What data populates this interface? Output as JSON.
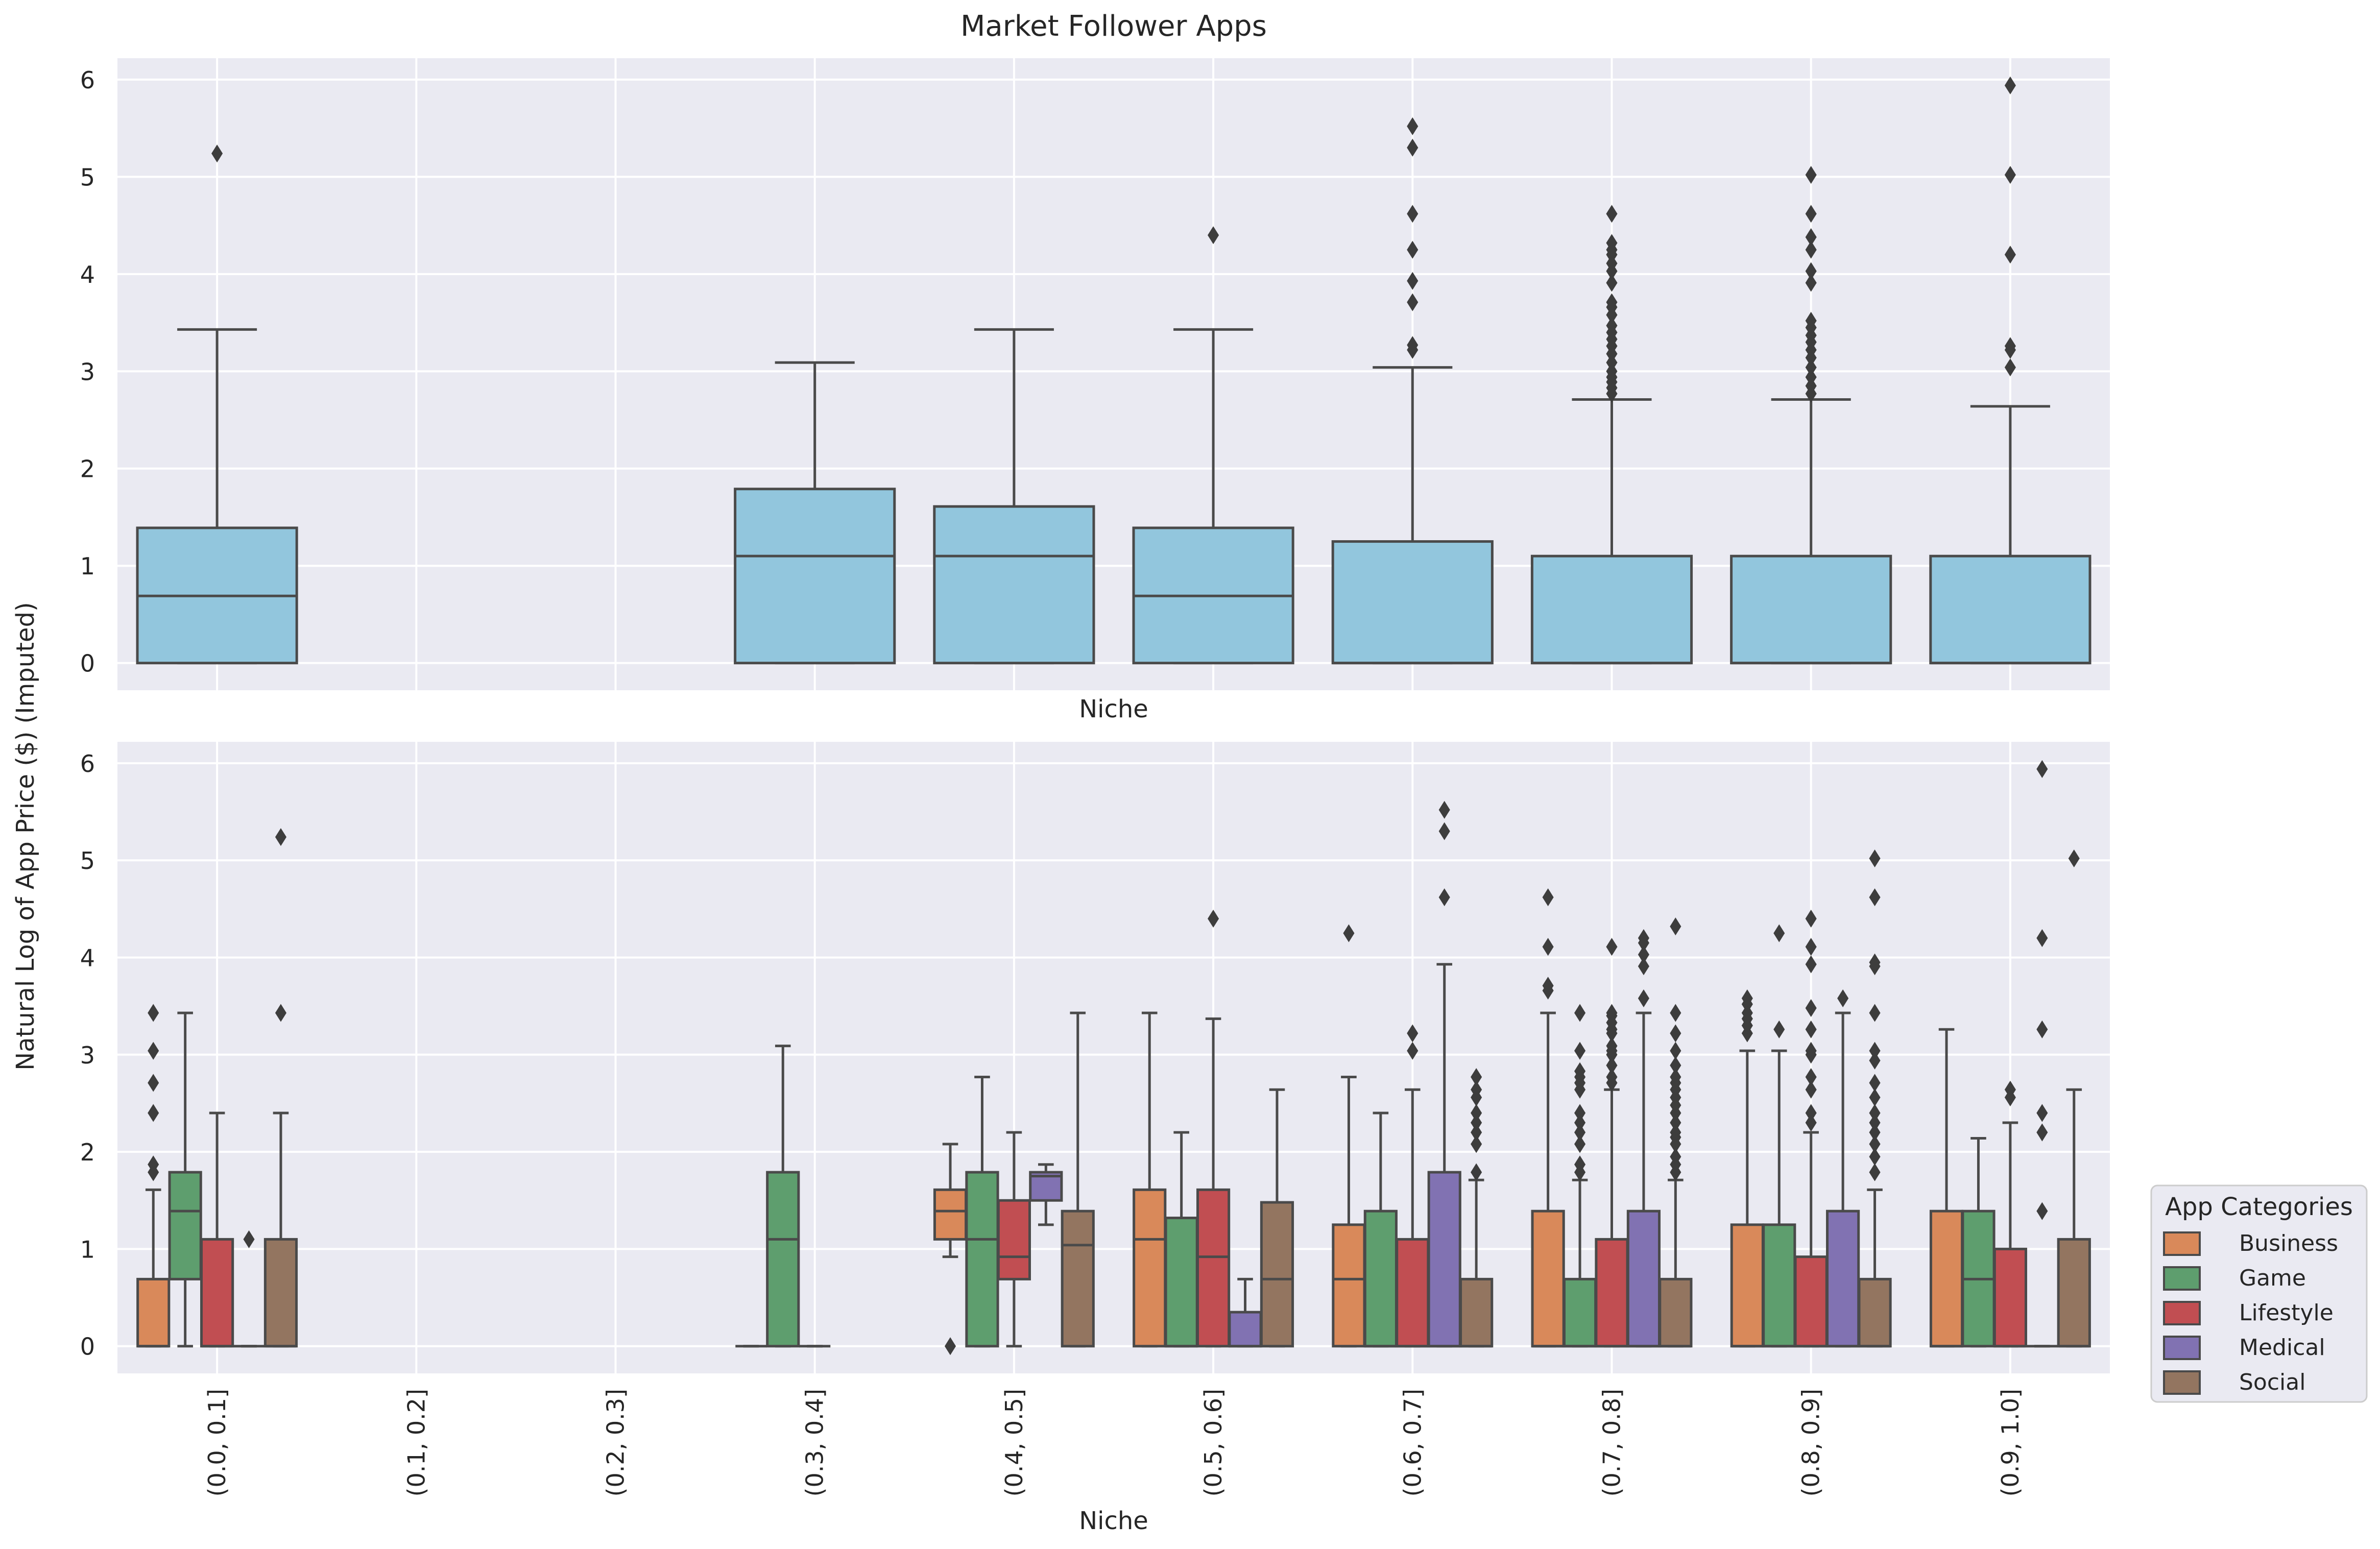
{
  "chart_data": {
    "type": "box",
    "title": "Market Follower Apps",
    "ylabel": "Natural Log of App Price ($) (Imputed)",
    "categories": [
      "(0.0, 0.1]",
      "(0.1, 0.2]",
      "(0.2, 0.3]",
      "(0.3, 0.4]",
      "(0.4, 0.5]",
      "(0.5, 0.6]",
      "(0.6, 0.7]",
      "(0.7, 0.8]",
      "(0.8, 0.9]",
      "(0.9, 1.0]"
    ],
    "yticks": [
      0,
      1,
      2,
      3,
      4,
      5,
      6
    ],
    "ylim": [
      -0.28,
      6.22
    ],
    "colors": {
      "overall": "#92C6DD",
      "Business": "#D9895A",
      "Game": "#5E9E6E",
      "Lifestyle": "#C14E52",
      "Medical": "#8172B2",
      "Social": "#937560",
      "line": "#4A4A4A",
      "background": "#EAEAF2",
      "grid": "#FFFFFF"
    },
    "top": {
      "xlabel": "Niche",
      "boxes": [
        {
          "cat": 0,
          "lo": 0,
          "q1": 0,
          "med": 0.69,
          "q3": 1.39,
          "hi": 3.43,
          "outliers": [
            5.24
          ]
        },
        {
          "cat": 3,
          "lo": 0,
          "q1": 0,
          "med": 1.1,
          "q3": 1.79,
          "hi": 3.09,
          "outliers": []
        },
        {
          "cat": 4,
          "lo": 0,
          "q1": 0,
          "med": 1.1,
          "q3": 1.61,
          "hi": 3.43,
          "outliers": []
        },
        {
          "cat": 5,
          "lo": 0,
          "q1": 0,
          "med": 0.69,
          "q3": 1.39,
          "hi": 3.43,
          "outliers": [
            4.4
          ]
        },
        {
          "cat": 6,
          "lo": 0,
          "q1": 0,
          "med": 0,
          "q3": 1.25,
          "hi": 3.04,
          "outliers": [
            3.22,
            3.27,
            3.71,
            3.93,
            4.25,
            4.62,
            5.3,
            5.52
          ]
        },
        {
          "cat": 7,
          "lo": 0,
          "q1": 0,
          "med": 0,
          "q3": 1.1,
          "hi": 2.71,
          "outliers": [
            2.77,
            2.83,
            2.89,
            2.94,
            3.0,
            3.09,
            3.18,
            3.26,
            3.33,
            3.4,
            3.47,
            3.58,
            3.66,
            3.71,
            3.91,
            4.03,
            4.11,
            4.2,
            4.25,
            4.32,
            4.62
          ]
        },
        {
          "cat": 8,
          "lo": 0,
          "q1": 0,
          "med": 0,
          "q3": 1.1,
          "hi": 2.71,
          "outliers": [
            2.77,
            2.85,
            2.94,
            3.04,
            3.14,
            3.22,
            3.3,
            3.37,
            3.45,
            3.52,
            3.91,
            4.03,
            4.25,
            4.38,
            4.62,
            5.02
          ]
        },
        {
          "cat": 9,
          "lo": 0,
          "q1": 0,
          "med": 0,
          "q3": 1.1,
          "hi": 2.64,
          "outliers": [
            3.04,
            3.22,
            3.26,
            4.2,
            5.02,
            5.94
          ]
        }
      ]
    },
    "bottom": {
      "xlabel": "Niche",
      "legend_title": "App Categories",
      "hue_order": [
        "Business",
        "Game",
        "Lifestyle",
        "Medical",
        "Social"
      ],
      "boxes": [
        {
          "cat": 0,
          "hue": "Business",
          "lo": 0,
          "q1": 0,
          "med": 0,
          "q3": 0.69,
          "hi": 1.61,
          "outliers": [
            1.79,
            1.87,
            2.4,
            2.71,
            3.04,
            3.43
          ]
        },
        {
          "cat": 0,
          "hue": "Game",
          "lo": 0,
          "q1": 0.69,
          "med": 1.39,
          "q3": 1.79,
          "hi": 3.43,
          "outliers": []
        },
        {
          "cat": 0,
          "hue": "Lifestyle",
          "lo": 0,
          "q1": 0,
          "med": 0,
          "q3": 1.1,
          "hi": 2.4,
          "outliers": []
        },
        {
          "cat": 0,
          "hue": "Medical",
          "lo": 0,
          "q1": 0,
          "med": 0,
          "q3": 0,
          "hi": 0,
          "outliers": [
            1.1
          ]
        },
        {
          "cat": 0,
          "hue": "Social",
          "lo": 0,
          "q1": 0,
          "med": 0,
          "q3": 1.1,
          "hi": 2.4,
          "outliers": [
            3.43,
            5.24
          ]
        },
        {
          "cat": 3,
          "hue": "Business",
          "lo": 0,
          "q1": 0,
          "med": 0,
          "q3": 0,
          "hi": 0,
          "outliers": []
        },
        {
          "cat": 3,
          "hue": "Game",
          "lo": 0,
          "q1": 0,
          "med": 1.1,
          "q3": 1.79,
          "hi": 3.09,
          "outliers": []
        },
        {
          "cat": 3,
          "hue": "Lifestyle",
          "lo": 0,
          "q1": 0,
          "med": 0,
          "q3": 0,
          "hi": 0,
          "outliers": []
        },
        {
          "cat": 4,
          "hue": "Business",
          "lo": 0.92,
          "q1": 1.1,
          "med": 1.39,
          "q3": 1.61,
          "hi": 2.08,
          "outliers": [
            0
          ]
        },
        {
          "cat": 4,
          "hue": "Game",
          "lo": 0,
          "q1": 0,
          "med": 1.1,
          "q3": 1.79,
          "hi": 2.77,
          "outliers": []
        },
        {
          "cat": 4,
          "hue": "Lifestyle",
          "lo": 0,
          "q1": 0.69,
          "med": 0.92,
          "q3": 1.5,
          "hi": 2.2,
          "outliers": []
        },
        {
          "cat": 4,
          "hue": "Medical",
          "lo": 1.25,
          "q1": 1.5,
          "med": 1.75,
          "q3": 1.79,
          "hi": 1.87,
          "outliers": []
        },
        {
          "cat": 4,
          "hue": "Social",
          "lo": 0,
          "q1": 0,
          "med": 1.04,
          "q3": 1.39,
          "hi": 3.43,
          "outliers": []
        },
        {
          "cat": 5,
          "hue": "Business",
          "lo": 0,
          "q1": 0,
          "med": 1.1,
          "q3": 1.61,
          "hi": 3.43,
          "outliers": []
        },
        {
          "cat": 5,
          "hue": "Game",
          "lo": 0,
          "q1": 0,
          "med": 0,
          "q3": 1.32,
          "hi": 2.2,
          "outliers": []
        },
        {
          "cat": 5,
          "hue": "Lifestyle",
          "lo": 0,
          "q1": 0,
          "med": 0.92,
          "q3": 1.61,
          "hi": 3.37,
          "outliers": [
            4.4
          ]
        },
        {
          "cat": 5,
          "hue": "Medical",
          "lo": 0,
          "q1": 0,
          "med": 0,
          "q3": 0.35,
          "hi": 0.69,
          "outliers": []
        },
        {
          "cat": 5,
          "hue": "Social",
          "lo": 0,
          "q1": 0,
          "med": 0.69,
          "q3": 1.48,
          "hi": 2.64,
          "outliers": []
        },
        {
          "cat": 6,
          "hue": "Business",
          "lo": 0,
          "q1": 0,
          "med": 0.69,
          "q3": 1.25,
          "hi": 2.77,
          "outliers": [
            4.25
          ]
        },
        {
          "cat": 6,
          "hue": "Game",
          "lo": 0,
          "q1": 0,
          "med": 0,
          "q3": 1.39,
          "hi": 2.4,
          "outliers": []
        },
        {
          "cat": 6,
          "hue": "Lifestyle",
          "lo": 0,
          "q1": 0,
          "med": 0,
          "q3": 1.1,
          "hi": 2.64,
          "outliers": [
            3.04,
            3.22
          ]
        },
        {
          "cat": 6,
          "hue": "Medical",
          "lo": 0,
          "q1": 0,
          "med": 0,
          "q3": 1.79,
          "hi": 3.93,
          "outliers": [
            4.62,
            5.3,
            5.52
          ]
        },
        {
          "cat": 6,
          "hue": "Social",
          "lo": 0,
          "q1": 0,
          "med": 0,
          "q3": 0.69,
          "hi": 1.71,
          "outliers": [
            1.79,
            2.08,
            2.2,
            2.3,
            2.4,
            2.56,
            2.64,
            2.77
          ]
        },
        {
          "cat": 7,
          "hue": "Business",
          "lo": 0,
          "q1": 0,
          "med": 0,
          "q3": 1.39,
          "hi": 3.43,
          "outliers": [
            3.66,
            3.71,
            4.11,
            4.62
          ]
        },
        {
          "cat": 7,
          "hue": "Game",
          "lo": 0,
          "q1": 0,
          "med": 0,
          "q3": 0.69,
          "hi": 1.71,
          "outliers": [
            1.79,
            1.87,
            2.08,
            2.2,
            2.3,
            2.4,
            2.64,
            2.71,
            2.77,
            2.83,
            3.04,
            3.43
          ]
        },
        {
          "cat": 7,
          "hue": "Lifestyle",
          "lo": 0,
          "q1": 0,
          "med": 0,
          "q3": 1.1,
          "hi": 2.64,
          "outliers": [
            2.71,
            2.77,
            2.89,
            3.0,
            3.04,
            3.09,
            3.22,
            3.26,
            3.33,
            3.4,
            3.43,
            4.11
          ]
        },
        {
          "cat": 7,
          "hue": "Medical",
          "lo": 0,
          "q1": 0,
          "med": 0,
          "q3": 1.39,
          "hi": 3.43,
          "outliers": [
            3.58,
            3.91,
            4.03,
            4.15,
            4.2
          ]
        },
        {
          "cat": 7,
          "hue": "Social",
          "lo": 0,
          "q1": 0,
          "med": 0,
          "q3": 0.69,
          "hi": 1.71,
          "outliers": [
            1.79,
            1.87,
            1.95,
            2.08,
            2.15,
            2.2,
            2.3,
            2.4,
            2.48,
            2.56,
            2.64,
            2.71,
            2.77,
            2.89,
            3.04,
            3.22,
            3.43,
            4.32
          ]
        },
        {
          "cat": 8,
          "hue": "Business",
          "lo": 0,
          "q1": 0,
          "med": 0,
          "q3": 1.25,
          "hi": 3.04,
          "outliers": [
            3.22,
            3.3,
            3.37,
            3.43,
            3.52,
            3.58
          ]
        },
        {
          "cat": 8,
          "hue": "Game",
          "lo": 0,
          "q1": 0,
          "med": 0,
          "q3": 1.25,
          "hi": 3.04,
          "outliers": [
            3.26,
            4.25
          ]
        },
        {
          "cat": 8,
          "hue": "Lifestyle",
          "lo": 0,
          "q1": 0,
          "med": 0,
          "q3": 0.92,
          "hi": 2.2,
          "outliers": [
            2.3,
            2.4,
            2.64,
            2.77,
            3.0,
            3.04,
            3.26,
            3.48,
            3.93,
            4.11,
            4.4
          ]
        },
        {
          "cat": 8,
          "hue": "Medical",
          "lo": 0,
          "q1": 0,
          "med": 0,
          "q3": 1.39,
          "hi": 3.43,
          "outliers": [
            3.58
          ]
        },
        {
          "cat": 8,
          "hue": "Social",
          "lo": 0,
          "q1": 0,
          "med": 0,
          "q3": 0.69,
          "hi": 1.61,
          "outliers": [
            1.79,
            1.95,
            2.08,
            2.2,
            2.3,
            2.4,
            2.56,
            2.71,
            2.94,
            3.04,
            3.43,
            3.91,
            3.95,
            4.62,
            5.02
          ]
        },
        {
          "cat": 9,
          "hue": "Business",
          "lo": 0,
          "q1": 0,
          "med": 0,
          "q3": 1.39,
          "hi": 3.26,
          "outliers": []
        },
        {
          "cat": 9,
          "hue": "Game",
          "lo": 0,
          "q1": 0,
          "med": 0.69,
          "q3": 1.39,
          "hi": 2.14,
          "outliers": []
        },
        {
          "cat": 9,
          "hue": "Lifestyle",
          "lo": 0,
          "q1": 0,
          "med": 0,
          "q3": 1.0,
          "hi": 2.3,
          "outliers": [
            2.56,
            2.64
          ]
        },
        {
          "cat": 9,
          "hue": "Medical",
          "lo": 0,
          "q1": 0,
          "med": 0,
          "q3": 0,
          "hi": 0,
          "outliers": [
            1.39,
            2.2,
            2.4,
            3.26,
            4.2,
            5.94
          ]
        },
        {
          "cat": 9,
          "hue": "Social",
          "lo": 0,
          "q1": 0,
          "med": 0,
          "q3": 1.1,
          "hi": 2.64,
          "outliers": [
            5.02
          ]
        }
      ]
    }
  }
}
